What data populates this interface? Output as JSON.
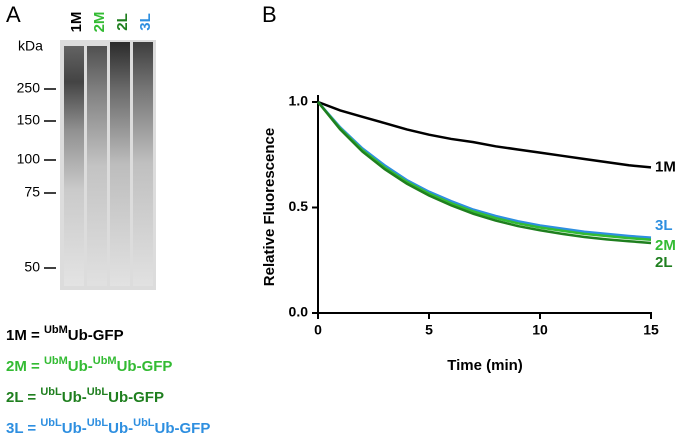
{
  "panel_a": {
    "label": "A",
    "lanes": [
      {
        "text": "1M",
        "color": "#000000"
      },
      {
        "text": "2M",
        "color": "#33bb33"
      },
      {
        "text": "2L",
        "color": "#1f7f1f"
      },
      {
        "text": "3L",
        "color": "#2e8fe0"
      }
    ],
    "unit": "kDa",
    "markers": [
      250,
      150,
      100,
      75,
      50
    ],
    "legend": [
      {
        "color": "#000000",
        "parts": [
          {
            "text": "1M = "
          },
          {
            "text": "UbM",
            "sup": true
          },
          {
            "text": "Ub-GFP"
          }
        ]
      },
      {
        "color": "#33bb33",
        "parts": [
          {
            "text": "2M = "
          },
          {
            "text": "UbM",
            "sup": true
          },
          {
            "text": "Ub-"
          },
          {
            "text": "UbM",
            "sup": true
          },
          {
            "text": "Ub-GFP"
          }
        ]
      },
      {
        "color": "#1f7f1f",
        "parts": [
          {
            "text": "2L = "
          },
          {
            "text": "UbL",
            "sup": true
          },
          {
            "text": "Ub-"
          },
          {
            "text": "UbL",
            "sup": true
          },
          {
            "text": "Ub-GFP"
          }
        ]
      },
      {
        "color": "#2e8fe0",
        "parts": [
          {
            "text": "3L = "
          },
          {
            "text": "UbL",
            "sup": true
          },
          {
            "text": "Ub-"
          },
          {
            "text": "UbL",
            "sup": true
          },
          {
            "text": "Ub-"
          },
          {
            "text": "UbL",
            "sup": true
          },
          {
            "text": "Ub-GFP"
          }
        ]
      }
    ]
  },
  "chart_data": {
    "type": "line",
    "panel_label": "B",
    "x_label": "Time (min)",
    "y_label": "Relative Fluorescence",
    "x": [
      0,
      1,
      2,
      3,
      4,
      5,
      6,
      7,
      8,
      9,
      10,
      11,
      12,
      13,
      14,
      15
    ],
    "xlim": [
      0,
      15
    ],
    "ylim": [
      0,
      1.0
    ],
    "xticks": [
      0,
      5,
      10,
      15
    ],
    "yticks": [
      {
        "value": 0,
        "label": "0.0"
      },
      0.5,
      {
        "value": 1,
        "label": "1.0"
      }
    ],
    "series": [
      {
        "name": "1M",
        "color": "#000000",
        "values": [
          1.0,
          0.96,
          0.93,
          0.9,
          0.87,
          0.845,
          0.825,
          0.81,
          0.79,
          0.775,
          0.76,
          0.745,
          0.73,
          0.715,
          0.7,
          0.69
        ]
      },
      {
        "name": "3L",
        "color": "#2e8fe0",
        "values": [
          1.0,
          0.88,
          0.78,
          0.7,
          0.63,
          0.575,
          0.53,
          0.49,
          0.46,
          0.435,
          0.415,
          0.4,
          0.385,
          0.375,
          0.365,
          0.357
        ]
      },
      {
        "name": "2M",
        "color": "#33bb33",
        "values": [
          1.0,
          0.875,
          0.772,
          0.69,
          0.622,
          0.566,
          0.52,
          0.481,
          0.45,
          0.425,
          0.405,
          0.39,
          0.375,
          0.365,
          0.355,
          0.347
        ]
      },
      {
        "name": "2L",
        "color": "#1f7f1f",
        "values": [
          1.0,
          0.87,
          0.765,
          0.682,
          0.613,
          0.557,
          0.51,
          0.47,
          0.438,
          0.412,
          0.392,
          0.375,
          0.36,
          0.349,
          0.34,
          0.332
        ]
      }
    ]
  }
}
